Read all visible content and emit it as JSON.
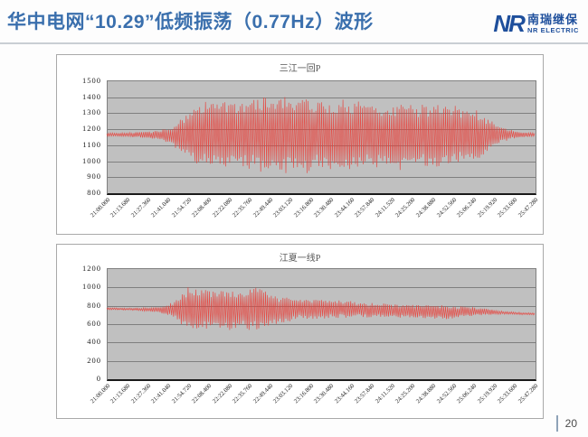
{
  "header": {
    "title": "华中电网“10.29”低频振荡（0.77Hz）波形",
    "logo": {
      "mark": "NR",
      "name_cn": "南瑞继保",
      "name_en": "NR ELECTRIC"
    }
  },
  "footer": {
    "page_number": "20"
  },
  "colors": {
    "title_blue": "#3a6fad",
    "logo_blue": "#1e4f9c",
    "waveform_red": "#e8403a",
    "plot_bg": "#c0c0c0",
    "grid_line": "#7f7f7f"
  },
  "chart_data": [
    {
      "type": "line",
      "title": "三江一回P",
      "series_name": "三江一回P",
      "frequency_hz": 0.77,
      "duration_s": 287.28,
      "ylim": [
        800,
        1500
      ],
      "y_ticks": [
        1500,
        1400,
        1300,
        1200,
        1100,
        1000,
        900,
        800
      ],
      "x_labels": [
        "21:00.000",
        "21:13.680",
        "21:27.360",
        "21:41.040",
        "21:54.720",
        "22:08.400",
        "22:22.080",
        "22:35.760",
        "22:49.440",
        "23:03.120",
        "23:16.800",
        "23:30.480",
        "23:44.160",
        "23:57.840",
        "24:11.520",
        "24:25.200",
        "24:38.880",
        "24:52.560",
        "25:06.240",
        "25:19.920",
        "25:33.600",
        "25:47.280"
      ],
      "baseline": 1160,
      "envelope": {
        "t": [
          0,
          0.04,
          0.08,
          0.12,
          0.15,
          0.18,
          0.21,
          0.24,
          0.28,
          0.32,
          0.36,
          0.4,
          0.44,
          0.48,
          0.52,
          0.56,
          0.6,
          0.64,
          0.68,
          0.72,
          0.76,
          0.8,
          0.84,
          0.87,
          0.9,
          0.93,
          0.96,
          1
        ],
        "upper": [
          1172,
          1172,
          1178,
          1185,
          1210,
          1280,
          1345,
          1370,
          1355,
          1370,
          1395,
          1400,
          1385,
          1395,
          1370,
          1380,
          1350,
          1345,
          1355,
          1335,
          1340,
          1345,
          1330,
          1300,
          1255,
          1205,
          1180,
          1172
        ],
        "lower": [
          1150,
          1148,
          1142,
          1130,
          1105,
          1040,
          975,
          955,
          965,
          945,
          930,
          920,
          935,
          925,
          950,
          940,
          960,
          955,
          945,
          965,
          955,
          975,
          985,
          1000,
          1075,
          1120,
          1142,
          1150
        ]
      }
    },
    {
      "type": "line",
      "title": "江夏一线P",
      "series_name": "江夏一线P",
      "frequency_hz": 0.77,
      "duration_s": 287.28,
      "ylim": [
        0,
        1200
      ],
      "y_ticks": [
        1200,
        1000,
        800,
        600,
        400,
        200,
        0
      ],
      "x_labels": [
        "21:00.000",
        "21:13.680",
        "21:27.360",
        "21:41.040",
        "21:54.720",
        "22:08.400",
        "22:22.080",
        "22:35.760",
        "22:49.440",
        "23:03.120",
        "23:16.800",
        "23:30.480",
        "23:44.160",
        "23:57.840",
        "24:11.520",
        "24:25.200",
        "24:38.880",
        "24:52.560",
        "25:06.240",
        "25:19.920",
        "25:33.600",
        "25:47.280"
      ],
      "baseline": 755,
      "envelope": {
        "t": [
          0,
          0.05,
          0.1,
          0.13,
          0.16,
          0.19,
          0.22,
          0.25,
          0.28,
          0.31,
          0.34,
          0.37,
          0.4,
          0.44,
          0.48,
          0.52,
          0.56,
          0.6,
          0.64,
          0.68,
          0.72,
          0.76,
          0.8,
          0.84,
          0.88,
          0.92,
          0.96,
          1
        ],
        "upper": [
          770,
          765,
          768,
          785,
          840,
          1005,
          985,
          950,
          965,
          940,
          995,
          955,
          900,
          875,
          865,
          855,
          845,
          825,
          815,
          805,
          795,
          795,
          790,
          780,
          765,
          735,
          720,
          712
        ],
        "lower": [
          748,
          742,
          728,
          705,
          655,
          525,
          535,
          560,
          515,
          545,
          520,
          545,
          600,
          635,
          650,
          655,
          660,
          665,
          668,
          662,
          658,
          652,
          648,
          672,
          688,
          698,
          694,
          690
        ]
      }
    }
  ]
}
